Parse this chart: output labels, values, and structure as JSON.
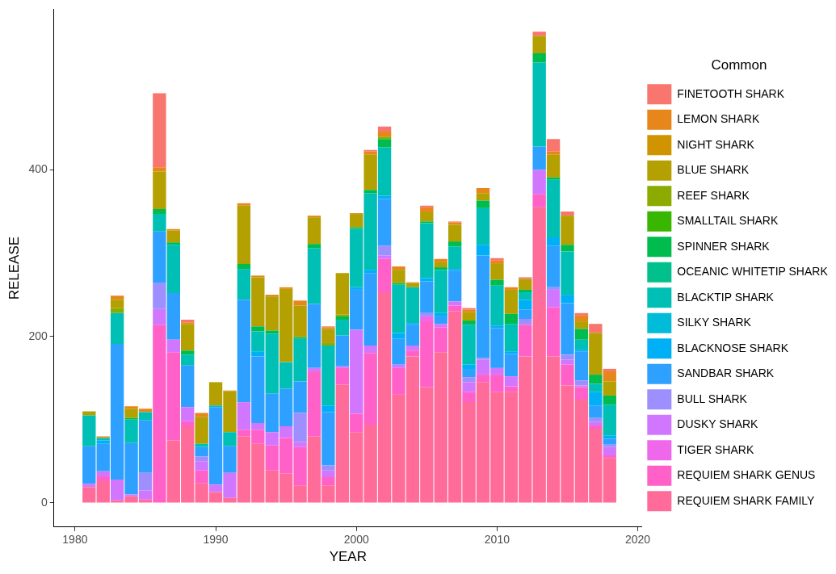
{
  "chart_data": {
    "type": "bar",
    "stacked": true,
    "xlabel": "YEAR",
    "ylabel": "RELEASE",
    "legend_title": "Common",
    "legend": "right",
    "grid": false,
    "x": [
      1981,
      1982,
      1983,
      1984,
      1985,
      1986,
      1987,
      1988,
      1989,
      1990,
      1991,
      1992,
      1993,
      1994,
      1995,
      1996,
      1997,
      1998,
      1999,
      2000,
      2001,
      2002,
      2003,
      2004,
      2005,
      2006,
      2007,
      2008,
      2009,
      2010,
      2011,
      2012,
      2013,
      2014,
      2015,
      2016,
      2017,
      2018
    ],
    "xlim": [
      1978.5,
      2020.3
    ],
    "xticks": [
      1980,
      1990,
      2000,
      2010,
      2020
    ],
    "ylim": [
      -29,
      593
    ],
    "yticks": [
      0,
      200,
      400
    ],
    "series": [
      {
        "name": "REQUIEM SHARK FAMILY",
        "color": "#ff6c9a",
        "values": [
          19,
          26,
          3,
          8,
          4,
          0,
          75,
          91,
          24,
          13,
          6,
          80,
          71,
          39,
          35,
          21,
          80,
          21,
          142,
          85,
          94,
          253,
          130,
          176,
          139,
          181,
          230,
          121,
          145,
          133,
          133,
          176,
          355,
          176,
          141,
          124,
          89,
          54
        ]
      },
      {
        "name": "REQUIEM SHARK GENUS",
        "color": "#ff61c9",
        "values": [
          0,
          6,
          0,
          0,
          0,
          214,
          106,
          7,
          15,
          0,
          0,
          8,
          17,
          30,
          43,
          46,
          78,
          10,
          20,
          22,
          86,
          40,
          32,
          7,
          79,
          30,
          7,
          12,
          9,
          21,
          7,
          38,
          16,
          59,
          25,
          15,
          4,
          3
        ]
      },
      {
        "name": "TIGER SHARK",
        "color": "#ef67eb",
        "values": [
          0,
          0,
          0,
          0,
          0,
          0,
          0,
          0,
          0,
          0,
          0,
          0,
          0,
          0,
          0,
          0,
          0,
          0,
          0,
          0,
          0,
          0,
          0,
          0,
          6,
          0,
          0,
          0,
          0,
          0,
          0,
          0,
          0,
          0,
          0,
          0,
          0,
          0
        ]
      },
      {
        "name": "DUSKY SHARK",
        "color": "#d177ff",
        "values": [
          4,
          6,
          25,
          2,
          11,
          19,
          15,
          17,
          11,
          9,
          30,
          33,
          8,
          16,
          14,
          6,
          4,
          8,
          2,
          101,
          9,
          4,
          4,
          6,
          0,
          4,
          5,
          12,
          18,
          8,
          12,
          0,
          29,
          21,
          6,
          2,
          4,
          10
        ]
      },
      {
        "name": "BULL SHARK",
        "color": "#9e8fff",
        "values": [
          0,
          0,
          0,
          0,
          21,
          31,
          0,
          0,
          6,
          0,
          0,
          0,
          0,
          0,
          0,
          35,
          0,
          6,
          0,
          0,
          0,
          12,
          0,
          0,
          4,
          0,
          0,
          6,
          2,
          0,
          0,
          7,
          0,
          3,
          6,
          6,
          5,
          3
        ]
      },
      {
        "name": "SANDBAR SHARK",
        "color": "#2ea0ff",
        "values": [
          45,
          33,
          163,
          62,
          63,
          62,
          56,
          50,
          11,
          93,
          32,
          123,
          80,
          46,
          45,
          38,
          77,
          64,
          37,
          48,
          87,
          56,
          31,
          25,
          38,
          9,
          37,
          9,
          123,
          48,
          27,
          11,
          28,
          50,
          62,
          35,
          15,
          7
        ]
      },
      {
        "name": "BLACKNOSE SHARK",
        "color": "#00b0f6",
        "values": [
          0,
          4,
          0,
          0,
          0,
          0,
          0,
          0,
          0,
          0,
          0,
          0,
          6,
          0,
          0,
          0,
          0,
          8,
          0,
          3,
          4,
          4,
          7,
          2,
          4,
          4,
          2,
          6,
          13,
          3,
          3,
          12,
          0,
          10,
          10,
          2,
          16,
          4
        ]
      },
      {
        "name": "SILKY SHARK",
        "color": "#00bcd8",
        "values": [
          0,
          0,
          0,
          0,
          0,
          0,
          0,
          0,
          0,
          0,
          0,
          0,
          0,
          0,
          0,
          0,
          0,
          0,
          0,
          0,
          0,
          0,
          0,
          0,
          0,
          0,
          0,
          0,
          0,
          0,
          0,
          0,
          0,
          0,
          0,
          0,
          0,
          0
        ]
      },
      {
        "name": "BLACKTIP SHARK",
        "color": "#00bfb4",
        "values": [
          37,
          3,
          37,
          28,
          10,
          21,
          58,
          13,
          4,
          2,
          17,
          37,
          24,
          72,
          32,
          51,
          67,
          72,
          19,
          70,
          92,
          58,
          58,
          43,
          66,
          52,
          27,
          48,
          44,
          48,
          33,
          9,
          101,
          69,
          52,
          12,
          10,
          37
        ]
      },
      {
        "name": "OCEANIC WHITETIP SHARK",
        "color": "#00c18b",
        "values": [
          0,
          0,
          0,
          0,
          0,
          0,
          0,
          0,
          0,
          0,
          0,
          0,
          0,
          0,
          0,
          0,
          0,
          0,
          0,
          0,
          0,
          0,
          0,
          0,
          0,
          0,
          0,
          0,
          0,
          0,
          0,
          0,
          0,
          0,
          0,
          0,
          0,
          0
        ]
      },
      {
        "name": "SPINNER SHARK",
        "color": "#00bb4e",
        "values": [
          0,
          0,
          0,
          2,
          0,
          6,
          3,
          5,
          0,
          0,
          0,
          6,
          6,
          4,
          0,
          2,
          5,
          0,
          4,
          2,
          4,
          10,
          2,
          0,
          2,
          3,
          6,
          5,
          9,
          7,
          12,
          3,
          11,
          3,
          8,
          13,
          11,
          11
        ]
      },
      {
        "name": "SMALLTAIL SHARK",
        "color": "#39b600",
        "values": [
          0,
          0,
          0,
          0,
          0,
          0,
          0,
          0,
          0,
          0,
          0,
          0,
          0,
          0,
          0,
          0,
          0,
          0,
          0,
          0,
          0,
          0,
          0,
          0,
          0,
          0,
          0,
          0,
          0,
          0,
          0,
          0,
          0,
          0,
          0,
          0,
          0,
          0
        ]
      },
      {
        "name": "REEF SHARK",
        "color": "#8cab00",
        "values": [
          0,
          0,
          6,
          0,
          0,
          0,
          0,
          0,
          0,
          0,
          0,
          0,
          0,
          0,
          0,
          0,
          0,
          3,
          2,
          0,
          0,
          3,
          0,
          0,
          0,
          0,
          0,
          0,
          0,
          0,
          0,
          0,
          0,
          0,
          0,
          0,
          0,
          0
        ]
      },
      {
        "name": "BLUE SHARK",
        "color": "#b4a000",
        "values": [
          5,
          0,
          10,
          11,
          0,
          45,
          14,
          32,
          32,
          28,
          49,
          70,
          59,
          41,
          88,
          38,
          32,
          17,
          50,
          16,
          42,
          0,
          16,
          5,
          11,
          6,
          20,
          10,
          9,
          19,
          29,
          13,
          21,
          27,
          35,
          9,
          50,
          17
        ]
      },
      {
        "name": "NIGHT SHARK",
        "color": "#d09400",
        "values": [
          0,
          0,
          0,
          0,
          0,
          0,
          0,
          0,
          0,
          0,
          0,
          0,
          0,
          0,
          0,
          0,
          0,
          0,
          0,
          0,
          0,
          0,
          0,
          0,
          0,
          0,
          0,
          0,
          0,
          0,
          0,
          0,
          0,
          0,
          0,
          0,
          0,
          0
        ]
      },
      {
        "name": "LEMON SHARK",
        "color": "#e7861b",
        "values": [
          0,
          2,
          5,
          3,
          4,
          5,
          2,
          2,
          5,
          0,
          1,
          3,
          2,
          2,
          2,
          6,
          2,
          2,
          0,
          1,
          4,
          6,
          4,
          1,
          6,
          4,
          3,
          3,
          6,
          4,
          3,
          0,
          0,
          4,
          0,
          7,
          0,
          12
        ]
      },
      {
        "name": "FINETOOTH SHARK",
        "color": "#f8766d",
        "values": [
          0,
          0,
          0,
          0,
          0,
          89,
          0,
          3,
          0,
          0,
          0,
          0,
          0,
          0,
          0,
          0,
          0,
          1,
          0,
          0,
          2,
          6,
          0,
          0,
          2,
          0,
          1,
          2,
          0,
          3,
          0,
          2,
          5,
          15,
          5,
          3,
          11,
          3
        ]
      }
    ]
  }
}
